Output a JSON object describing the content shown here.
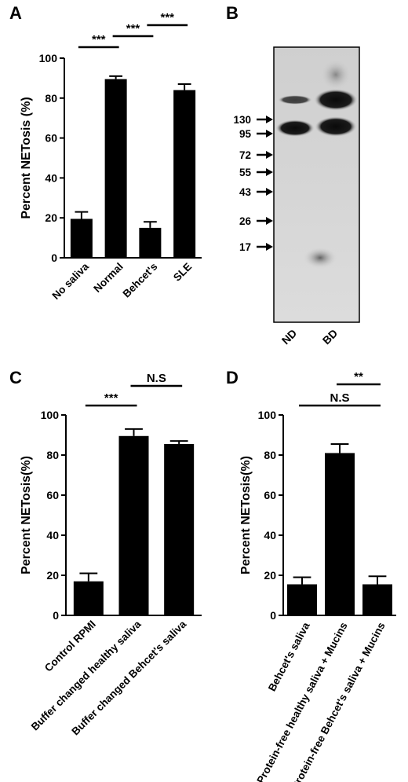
{
  "panels": {
    "A": "A",
    "B": "B",
    "C": "C",
    "D": "D"
  },
  "chart_data": [
    {
      "id": "A",
      "type": "bar",
      "ylabel": "Percent NETosis (%)",
      "ylim": [
        0,
        100
      ],
      "yticks": [
        "0",
        "20",
        "40",
        "60",
        "80",
        "100"
      ],
      "categories": [
        "No saliva",
        "Normal",
        "Behcet's",
        "SLE"
      ],
      "values": [
        19.5,
        89.5,
        15,
        84
      ],
      "errors": [
        3.5,
        1.5,
        3,
        3
      ],
      "significance": [
        {
          "from": 0,
          "to": 1,
          "label": "***",
          "level": 0
        },
        {
          "from": 1,
          "to": 2,
          "label": "***",
          "level": 1
        },
        {
          "from": 2,
          "to": 3,
          "label": "***",
          "level": 2
        }
      ]
    },
    {
      "id": "C",
      "type": "bar",
      "ylabel": "Percent NETosis(%)",
      "ylim": [
        0,
        100
      ],
      "yticks": [
        "0",
        "20",
        "40",
        "60",
        "80",
        "100"
      ],
      "categories": [
        "Control RPMI",
        "Buffer changed healthy saliva",
        "Buffer changed Behcet's saliva"
      ],
      "values": [
        17,
        89.5,
        85.5
      ],
      "errors": [
        4,
        3.5,
        1.5
      ],
      "significance": [
        {
          "from": 0,
          "to": 1,
          "label": "***",
          "level": 0
        },
        {
          "from": 1,
          "to": 2,
          "label": "N.S",
          "level": 1
        }
      ]
    },
    {
      "id": "D",
      "type": "bar",
      "ylabel": "Percent NETosis(%)",
      "ylim": [
        0,
        100
      ],
      "yticks": [
        "0",
        "20",
        "40",
        "60",
        "80",
        "100"
      ],
      "categories": [
        "Behcet's saliva",
        "Protein-free healthy saliva + Mucins",
        "Protein-free Behcet's saliva + Mucins"
      ],
      "values": [
        15.5,
        81,
        15.5
      ],
      "errors": [
        3.5,
        4.5,
        4
      ],
      "significance": [
        {
          "from": 0,
          "to": 2,
          "label": "N.S",
          "level": 0
        },
        {
          "from": 1,
          "to": 2,
          "label": "**",
          "level": 1
        }
      ]
    }
  ],
  "western_blot": {
    "markers": [
      "130",
      "95",
      "72",
      "55",
      "43",
      "26",
      "17"
    ],
    "lanes": [
      "ND",
      "BD"
    ]
  }
}
